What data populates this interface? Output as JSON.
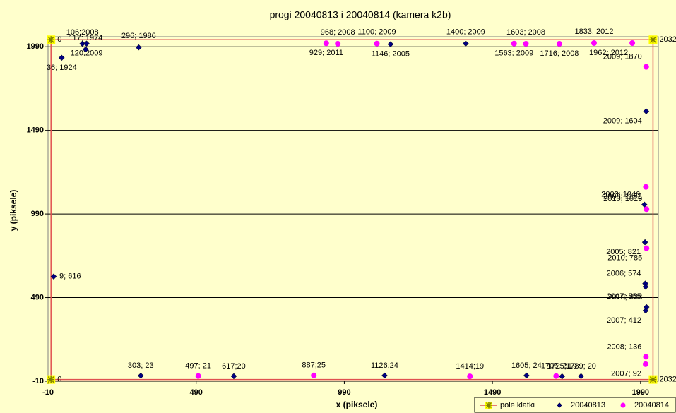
{
  "chart_data": {
    "type": "scatter",
    "title": "progi 20040813 i 20040814 (kamera k2b)",
    "x_label": "x (piksele)",
    "y_label": "y (piksele)",
    "xlim": [
      -10,
      2050
    ],
    "ylim": [
      -10,
      2050
    ],
    "xticks": [
      -10,
      490,
      990,
      1490,
      1990
    ],
    "yticks": [
      -10,
      490,
      990,
      1490,
      1990
    ],
    "grid": true,
    "legend": "bottom-right",
    "series": [
      {
        "name": "pole klatki",
        "color": "#e05050",
        "marker_color": "#ffff00",
        "marker": "star",
        "line": true,
        "closed": true,
        "x": [
          0,
          0,
          2032,
          2032
        ],
        "values": [
          0,
          2032,
          2032,
          0
        ]
      },
      {
        "name": "20040813",
        "color": "#000080",
        "marker": "diamond",
        "x": [
          106,
          120,
          117,
          36,
          296,
          1146,
          1400,
          2009,
          2003,
          2005,
          2006,
          2007,
          2010,
          2007,
          9,
          303,
          617,
          1126,
          1605,
          1725,
          1789
        ],
        "values": [
          2008,
          2009,
          1974,
          1924,
          1986,
          2005,
          2009,
          1604,
          1046,
          821,
          574,
          555,
          433,
          412,
          616,
          23,
          20,
          24,
          24,
          19,
          20
        ],
        "value_labels": [
          "106;2008",
          "120;2009",
          "117; 1974",
          "36; 1924",
          "296; 1986",
          "1146; 2005",
          "1400; 2009",
          "2009; 1604",
          "2003; 1046",
          "2005; 821",
          "2006; 574",
          "2007; 555",
          "2010; 433",
          "2007; 412",
          "9; 616",
          "303; 23",
          "617;20",
          "1126;24",
          "1605; 24",
          "1725; 19",
          "1789; 20"
        ]
      },
      {
        "name": "20040814",
        "color": "#ff00ff",
        "marker": "circle",
        "x": [
          968,
          929,
          1100,
          1563,
          1603,
          1716,
          1833,
          1962,
          2009,
          2008,
          2010,
          2010,
          497,
          887,
          1414,
          1705,
          2008,
          2007
        ],
        "values": [
          2008,
          2011,
          2009,
          2009,
          2008,
          2008,
          2012,
          2012,
          1870,
          1152,
          1019,
          785,
          21,
          25,
          19,
          21,
          136,
          92
        ],
        "value_labels": [
          "968; 2008",
          "929; 2011",
          "1100; 2009",
          "1563; 2009",
          "1603; 2008",
          "1716; 2008",
          "1833; 2012",
          "1962; 2012",
          "2009; 1870",
          "2008; 1152",
          "2010; 1019",
          "2010; 785",
          "497; 21",
          "887;25",
          "1414;19",
          "1705; 21",
          "2008; 136",
          "2007; 92"
        ]
      }
    ]
  }
}
